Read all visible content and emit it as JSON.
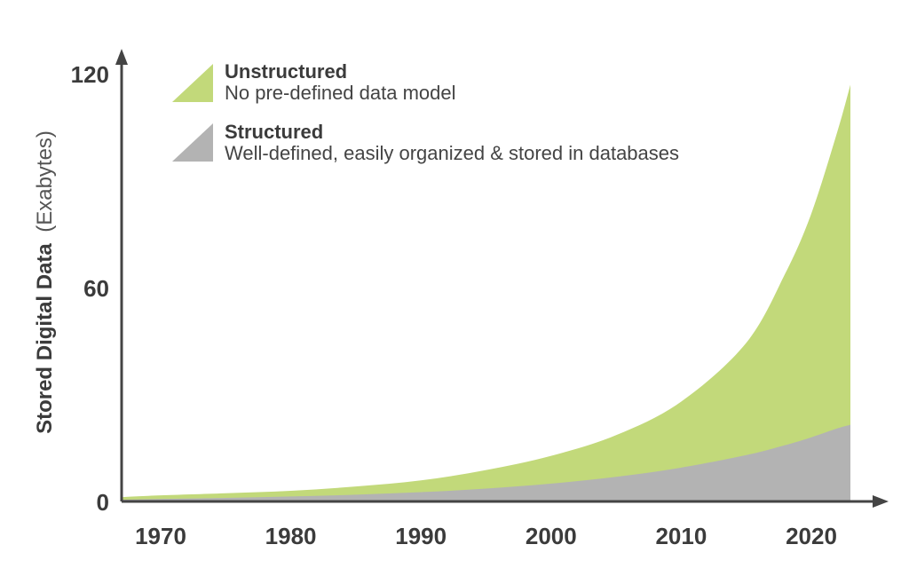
{
  "chart_data": {
    "type": "area",
    "stacked": true,
    "title": "",
    "xlabel": "",
    "ylabel": "Stored Digital Data",
    "ylabel_unit": "(Exabytes)",
    "xlim": [
      1967,
      2023
    ],
    "ylim": [
      0,
      120
    ],
    "x_ticks": [
      1970,
      1980,
      1990,
      2000,
      2010,
      2020
    ],
    "y_ticks": [
      0,
      60,
      120
    ],
    "grid": false,
    "legend_position": "top-left",
    "x": [
      1967,
      1970,
      1975,
      1980,
      1985,
      1990,
      1995,
      2000,
      2005,
      2010,
      2015,
      2018,
      2020,
      2022,
      2023
    ],
    "series": [
      {
        "name": "Structured",
        "description": "Well-defined, easily organized & stored in databases",
        "color": "#b3b3b3",
        "values": [
          0.5,
          0.7,
          1.0,
          1.4,
          1.9,
          2.6,
          3.6,
          5.0,
          6.9,
          9.5,
          13.0,
          15.8,
          18.0,
          20.5,
          21.5
        ]
      },
      {
        "name": "Unstructured",
        "description": "No pre-defined data model",
        "color": "#c2d97a",
        "values": [
          0.7,
          1.0,
          1.3,
          1.6,
          2.3,
          3.3,
          5.2,
          7.8,
          11.7,
          18.5,
          31.5,
          48.2,
          62.8,
          83.3,
          95.4
        ]
      }
    ]
  },
  "colors": {
    "axis": "#444444",
    "text": "#3b3b3b"
  }
}
